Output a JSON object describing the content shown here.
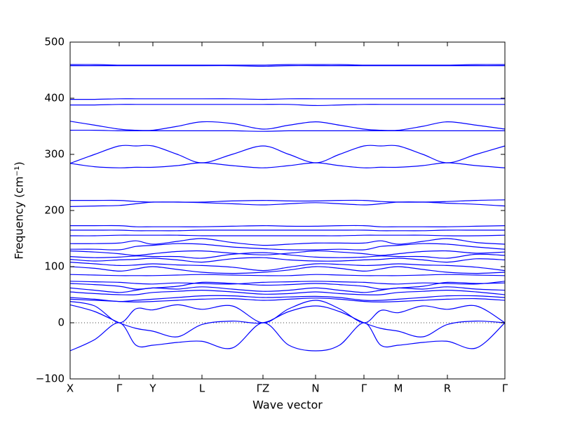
{
  "chart_data": {
    "type": "line",
    "x_label": "Wave vector",
    "y_label": "Frequency (cm⁻¹)",
    "color": "#0000ff",
    "hline": 0,
    "xlim": [
      0,
      620
    ],
    "ylim": [
      -100,
      500
    ],
    "xticks": [
      {
        "value": 0,
        "label": "X"
      },
      {
        "value": 70,
        "label": "Γ"
      },
      {
        "value": 118,
        "label": "Y"
      },
      {
        "value": 188,
        "label": "L"
      },
      {
        "value": 275,
        "label": "ΓZ"
      },
      {
        "value": 350,
        "label": "N"
      },
      {
        "value": 419,
        "label": "Γ"
      },
      {
        "value": 468,
        "label": "M"
      },
      {
        "value": 538,
        "label": "R"
      },
      {
        "value": 620,
        "label": "Γ"
      }
    ],
    "yticks": [
      {
        "value": -100,
        "label": "−100"
      },
      0,
      100,
      200,
      300,
      400,
      500
    ],
    "x": [
      0,
      35,
      70,
      94,
      118,
      153,
      188,
      231,
      275,
      312,
      350,
      384,
      419,
      443,
      468,
      503,
      538,
      579,
      620
    ],
    "series": [
      {
        "values": [
          460,
          460,
          459,
          459,
          459,
          459,
          459,
          459,
          459,
          460,
          460,
          460,
          459,
          459,
          459,
          459,
          459,
          460,
          460
        ]
      },
      {
        "values": [
          458,
          458,
          458,
          458,
          458,
          458,
          458,
          458,
          457,
          458,
          458,
          458,
          458,
          458,
          458,
          458,
          458,
          458,
          458
        ]
      },
      {
        "values": [
          398,
          398,
          399,
          399,
          399,
          399,
          399,
          399,
          398,
          399,
          399,
          399,
          399,
          399,
          399,
          399,
          399,
          399,
          399
        ]
      },
      {
        "values": [
          388,
          388,
          389,
          389,
          389,
          389,
          389,
          389,
          389,
          389,
          387,
          388,
          389,
          389,
          389,
          389,
          389,
          389,
          389
        ]
      },
      {
        "values": [
          359,
          352,
          345,
          343,
          343,
          350,
          358,
          355,
          345,
          352,
          358,
          352,
          345,
          343,
          343,
          350,
          358,
          352,
          345
        ]
      },
      {
        "values": [
          343,
          343,
          342,
          342,
          342,
          342,
          342,
          342,
          341,
          342,
          342,
          342,
          342,
          342,
          342,
          342,
          342,
          342,
          342
        ]
      },
      {
        "values": [
          284,
          300,
          315,
          315,
          315,
          300,
          285,
          300,
          315,
          300,
          285,
          300,
          315,
          315,
          315,
          300,
          285,
          300,
          315
        ]
      },
      {
        "values": [
          284,
          278,
          276,
          277,
          277,
          280,
          285,
          280,
          276,
          280,
          285,
          280,
          276,
          277,
          277,
          280,
          285,
          280,
          276
        ]
      },
      {
        "values": [
          218,
          218,
          218,
          216,
          215,
          215,
          215,
          217,
          218,
          217,
          217,
          218,
          218,
          216,
          215,
          215,
          216,
          218,
          219
        ]
      },
      {
        "values": [
          207,
          208,
          209,
          212,
          215,
          215,
          214,
          212,
          210,
          212,
          214,
          212,
          210,
          212,
          215,
          215,
          213,
          211,
          208
        ]
      },
      {
        "values": [
          173,
          173,
          173,
          171,
          171,
          171,
          171,
          172,
          173,
          172,
          172,
          173,
          173,
          171,
          171,
          171,
          171,
          172,
          173
        ]
      },
      {
        "values": [
          165,
          165,
          165,
          164,
          164,
          164,
          165,
          165,
          165,
          165,
          165,
          165,
          165,
          164,
          164,
          164,
          165,
          165,
          165
        ]
      },
      {
        "values": [
          155,
          155,
          156,
          156,
          156,
          156,
          155,
          155,
          155,
          155,
          155,
          155,
          156,
          156,
          156,
          156,
          155,
          155,
          156
        ]
      },
      {
        "values": [
          141,
          141,
          142,
          146,
          140,
          145,
          150,
          143,
          138,
          140,
          142,
          142,
          142,
          146,
          140,
          145,
          150,
          143,
          140
        ]
      },
      {
        "values": [
          131,
          131,
          130,
          136,
          138,
          141,
          140,
          135,
          132,
          130,
          130,
          131,
          130,
          136,
          138,
          141,
          140,
          135,
          131
        ]
      },
      {
        "values": [
          128,
          126,
          123,
          120,
          123,
          127,
          128,
          124,
          121,
          124,
          128,
          126,
          123,
          120,
          123,
          127,
          128,
          124,
          126
        ]
      },
      {
        "values": [
          118,
          116,
          117,
          119,
          118,
          118,
          115,
          122,
          125,
          121,
          117,
          116,
          117,
          119,
          118,
          118,
          115,
          122,
          120
        ]
      },
      {
        "values": [
          113,
          110,
          112,
          113,
          115,
          112,
          108,
          114,
          116,
          112,
          110,
          110,
          112,
          113,
          115,
          112,
          108,
          114,
          112
        ]
      },
      {
        "values": [
          108,
          105,
          102,
          103,
          105,
          103,
          102,
          99,
          93,
          99,
          105,
          104,
          102,
          103,
          105,
          103,
          102,
          99,
          93
        ]
      },
      {
        "values": [
          100,
          97,
          92,
          96,
          100,
          95,
          90,
          88,
          90,
          94,
          100,
          97,
          92,
          96,
          100,
          95,
          90,
          88,
          90
        ]
      },
      {
        "values": [
          86,
          85,
          84,
          84,
          84,
          85,
          86,
          85,
          84,
          84,
          86,
          85,
          84,
          84,
          84,
          85,
          86,
          85,
          84
        ]
      },
      {
        "values": [
          74,
          73,
          72,
          70,
          69,
          71,
          70,
          69,
          72,
          73,
          74,
          73,
          72,
          70,
          69,
          71,
          70,
          69,
          74
        ]
      },
      {
        "values": [
          70,
          68,
          65,
          60,
          62,
          65,
          72,
          70,
          67,
          68,
          70,
          68,
          65,
          60,
          62,
          65,
          72,
          70,
          71
        ]
      },
      {
        "values": [
          62,
          58,
          54,
          58,
          62,
          60,
          64,
          60,
          56,
          58,
          62,
          58,
          54,
          58,
          62,
          60,
          64,
          60,
          58
        ]
      },
      {
        "values": [
          55,
          52,
          50,
          50,
          54,
          56,
          58,
          55,
          51,
          52,
          55,
          52,
          50,
          50,
          54,
          56,
          58,
          55,
          50
        ]
      },
      {
        "values": [
          45,
          42,
          38,
          40,
          42,
          45,
          48,
          48,
          45,
          46,
          47,
          45,
          40,
          40,
          42,
          45,
          48,
          48,
          45
        ]
      },
      {
        "values": [
          42,
          40,
          38,
          37,
          38,
          40,
          42,
          43,
          40,
          42,
          44,
          42,
          38,
          37,
          38,
          40,
          42,
          43,
          40
        ]
      },
      {
        "values": [
          38,
          30,
          0,
          25,
          23,
          32,
          24,
          30,
          0,
          25,
          40,
          25,
          0,
          22,
          18,
          30,
          24,
          30,
          0
        ]
      },
      {
        "values": [
          32,
          20,
          0,
          -10,
          -15,
          -25,
          -3,
          3,
          0,
          20,
          30,
          20,
          0,
          -10,
          -15,
          -25,
          -3,
          3,
          0
        ]
      },
      {
        "values": [
          -50,
          -30,
          0,
          -40,
          -40,
          -35,
          -33,
          -45,
          0,
          -40,
          -50,
          -40,
          0,
          -40,
          -40,
          -35,
          -33,
          -45,
          0
        ]
      }
    ]
  }
}
